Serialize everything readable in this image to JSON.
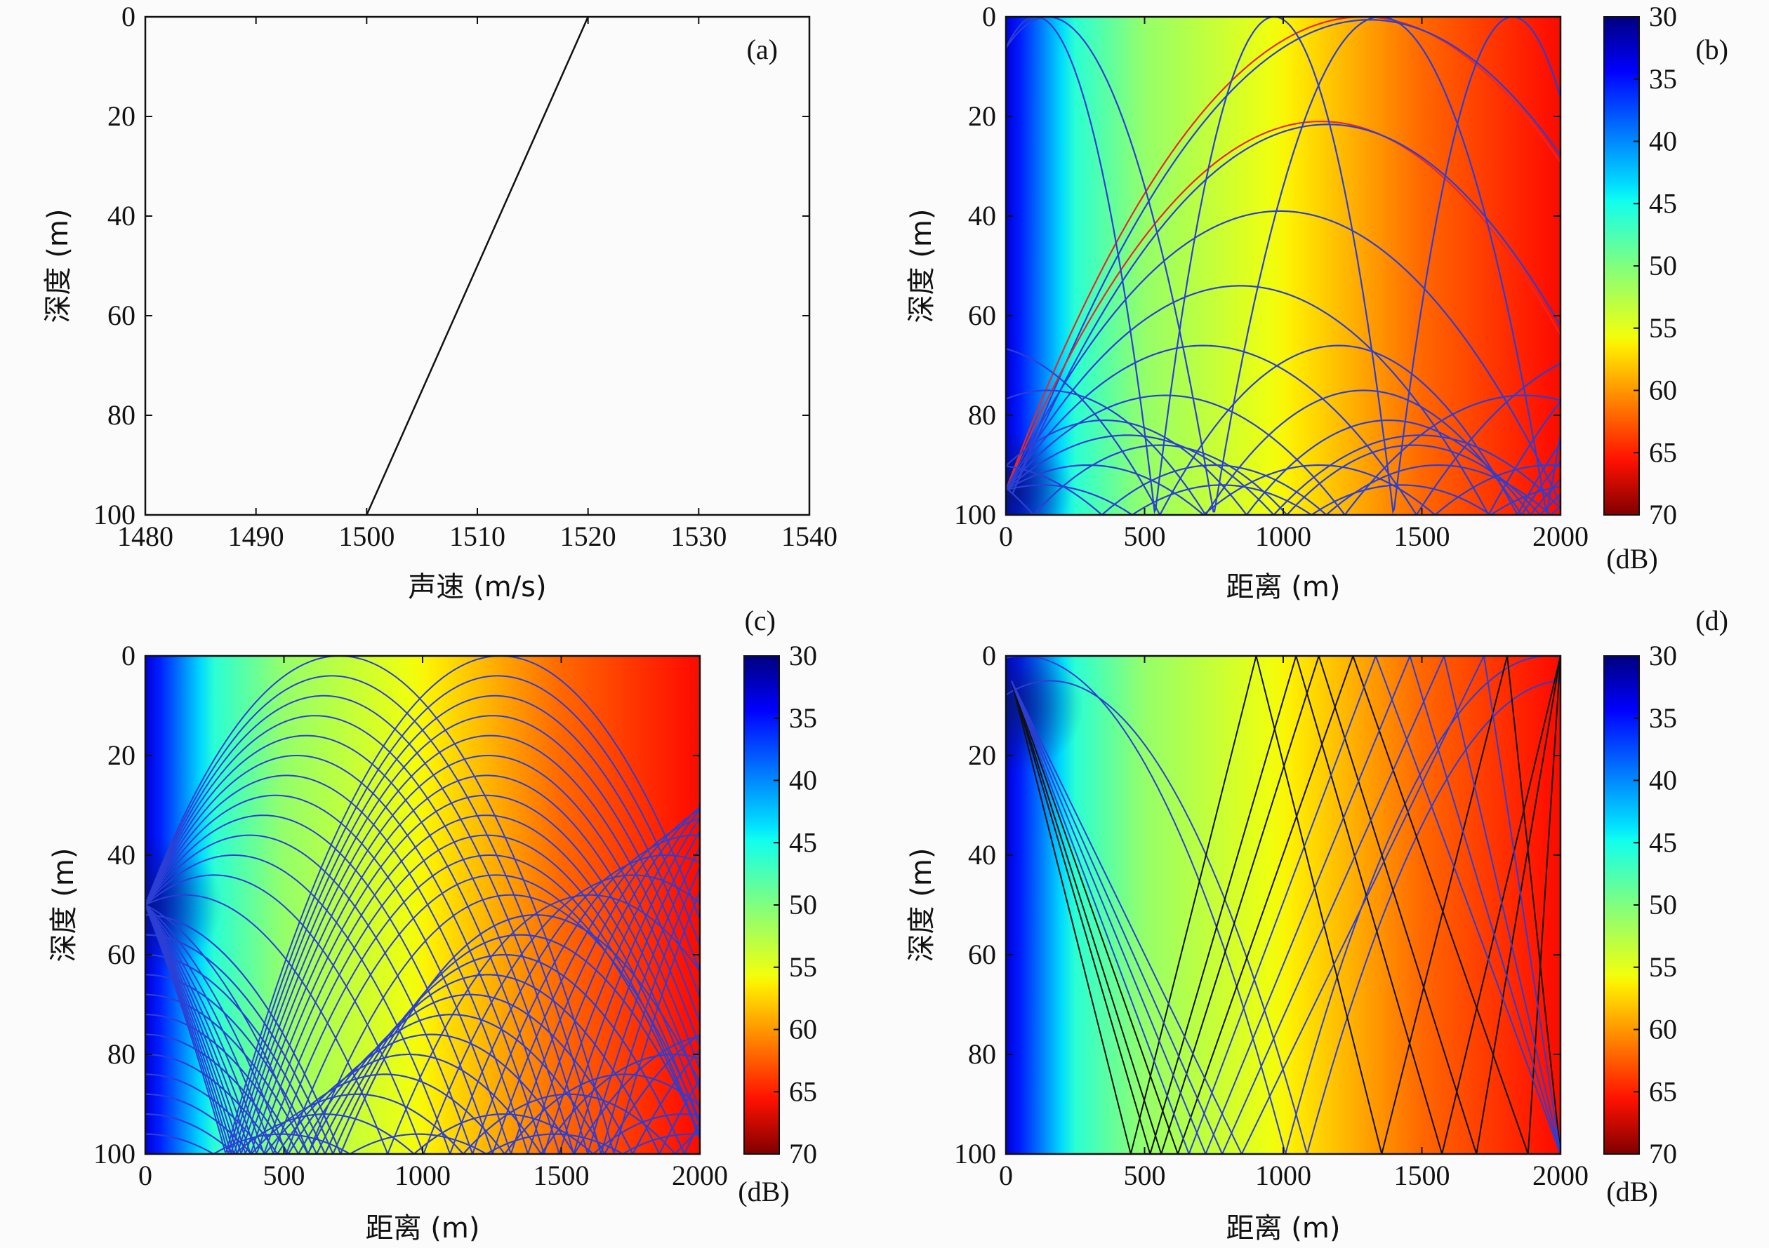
{
  "chart_data": [
    {
      "id": "a",
      "type": "line",
      "panel_label": "(a)",
      "xlabel": "声速 (m/s)",
      "ylabel": "深度 (m)",
      "xlim": [
        1480,
        1540
      ],
      "ylim": [
        0,
        100
      ],
      "y_inverted": true,
      "x_ticks": [
        "1480",
        "1490",
        "1500",
        "1510",
        "1520",
        "1530",
        "1540"
      ],
      "y_ticks": [
        "0",
        "20",
        "40",
        "60",
        "80",
        "100"
      ],
      "series": [
        {
          "x": [
            1520,
            1500
          ],
          "y": [
            0,
            100
          ],
          "color": "#111111"
        }
      ]
    },
    {
      "id": "b",
      "type": "heatmap",
      "panel_label": "(b)",
      "xlabel": "距离 (m)",
      "ylabel": "深度 (m)",
      "xlim": [
        0,
        2000
      ],
      "ylim": [
        0,
        100
      ],
      "y_inverted": true,
      "x_ticks": [
        "0",
        "500",
        "1000",
        "1500",
        "2000"
      ],
      "y_ticks": [
        "0",
        "20",
        "40",
        "60",
        "80",
        "100"
      ],
      "source": {
        "range": 0,
        "depth": 95
      },
      "field_trend": {
        "range": [
          0,
          100,
          250,
          500,
          1000,
          1500,
          2000
        ],
        "level_db": [
          33,
          38,
          46,
          51,
          56,
          62,
          66
        ]
      },
      "ray_families": {
        "refracted_turning_depths": [
          0,
          21,
          39,
          54,
          66,
          76,
          84,
          90,
          94
        ],
        "refracted_turning_depths_red": [
          0,
          21
        ],
        "surface_reflected_half_widths": [
          430,
          600
        ],
        "secondary_turning_depths": [
          66,
          75,
          81,
          86,
          90
        ]
      },
      "colorbar": {
        "unit": "(dB)",
        "range": [
          30,
          70
        ],
        "ticks": [
          "30",
          "35",
          "40",
          "45",
          "50",
          "55",
          "60",
          "65",
          "70"
        ]
      }
    },
    {
      "id": "c",
      "type": "heatmap",
      "panel_label": "(c)",
      "xlabel": "距离 (m)",
      "ylabel": "深度 (m)",
      "xlim": [
        0,
        2000
      ],
      "ylim": [
        0,
        100
      ],
      "y_inverted": true,
      "x_ticks": [
        "0",
        "500",
        "1000",
        "1500",
        "2000"
      ],
      "y_ticks": [
        "0",
        "20",
        "40",
        "60",
        "80",
        "100"
      ],
      "source": {
        "range": 0,
        "depth": 50
      },
      "field_trend": {
        "range": [
          0,
          100,
          250,
          500,
          1000,
          1500,
          2000
        ],
        "level_db": [
          33,
          38,
          46,
          51,
          56,
          62,
          66
        ]
      },
      "ray_families": {
        "refracted_turning_depths": [
          0,
          4,
          8,
          12,
          16,
          20,
          24,
          28,
          32,
          36,
          40,
          44,
          48,
          52,
          56,
          60,
          64,
          68,
          72,
          76,
          80,
          84,
          88,
          92,
          96
        ]
      },
      "colorbar": {
        "unit": "(dB)",
        "range": [
          30,
          70
        ],
        "ticks": [
          "30",
          "35",
          "40",
          "45",
          "50",
          "55",
          "60",
          "65",
          "70"
        ]
      }
    },
    {
      "id": "d",
      "type": "heatmap",
      "panel_label": "(d)",
      "xlabel": "距离 (m)",
      "ylabel": "深度 (m)",
      "xlim": [
        0,
        2000
      ],
      "ylim": [
        0,
        100
      ],
      "y_inverted": true,
      "x_ticks": [
        "0",
        "500",
        "1000",
        "1500",
        "2000"
      ],
      "y_ticks": [
        "0",
        "20",
        "40",
        "60",
        "80",
        "100"
      ],
      "source": {
        "range": 0,
        "depth": 5
      },
      "field_trend": {
        "range": [
          0,
          100,
          250,
          500,
          1000,
          1500,
          2000
        ],
        "level_db": [
          33,
          38,
          46,
          51,
          56,
          62,
          66
        ]
      },
      "ray_families": {
        "refracted_turning_depths": [
          0,
          5
        ],
        "steep_bottom_ranges": [
          450,
          520,
          560,
          620,
          660,
          720,
          780,
          850
        ],
        "black_bottom_ranges": [
          450,
          520,
          560,
          620
        ]
      },
      "colorbar": {
        "unit": "(dB)",
        "range": [
          30,
          70
        ],
        "ticks": [
          "30",
          "35",
          "40",
          "45",
          "50",
          "55",
          "60",
          "65",
          "70"
        ]
      }
    }
  ]
}
